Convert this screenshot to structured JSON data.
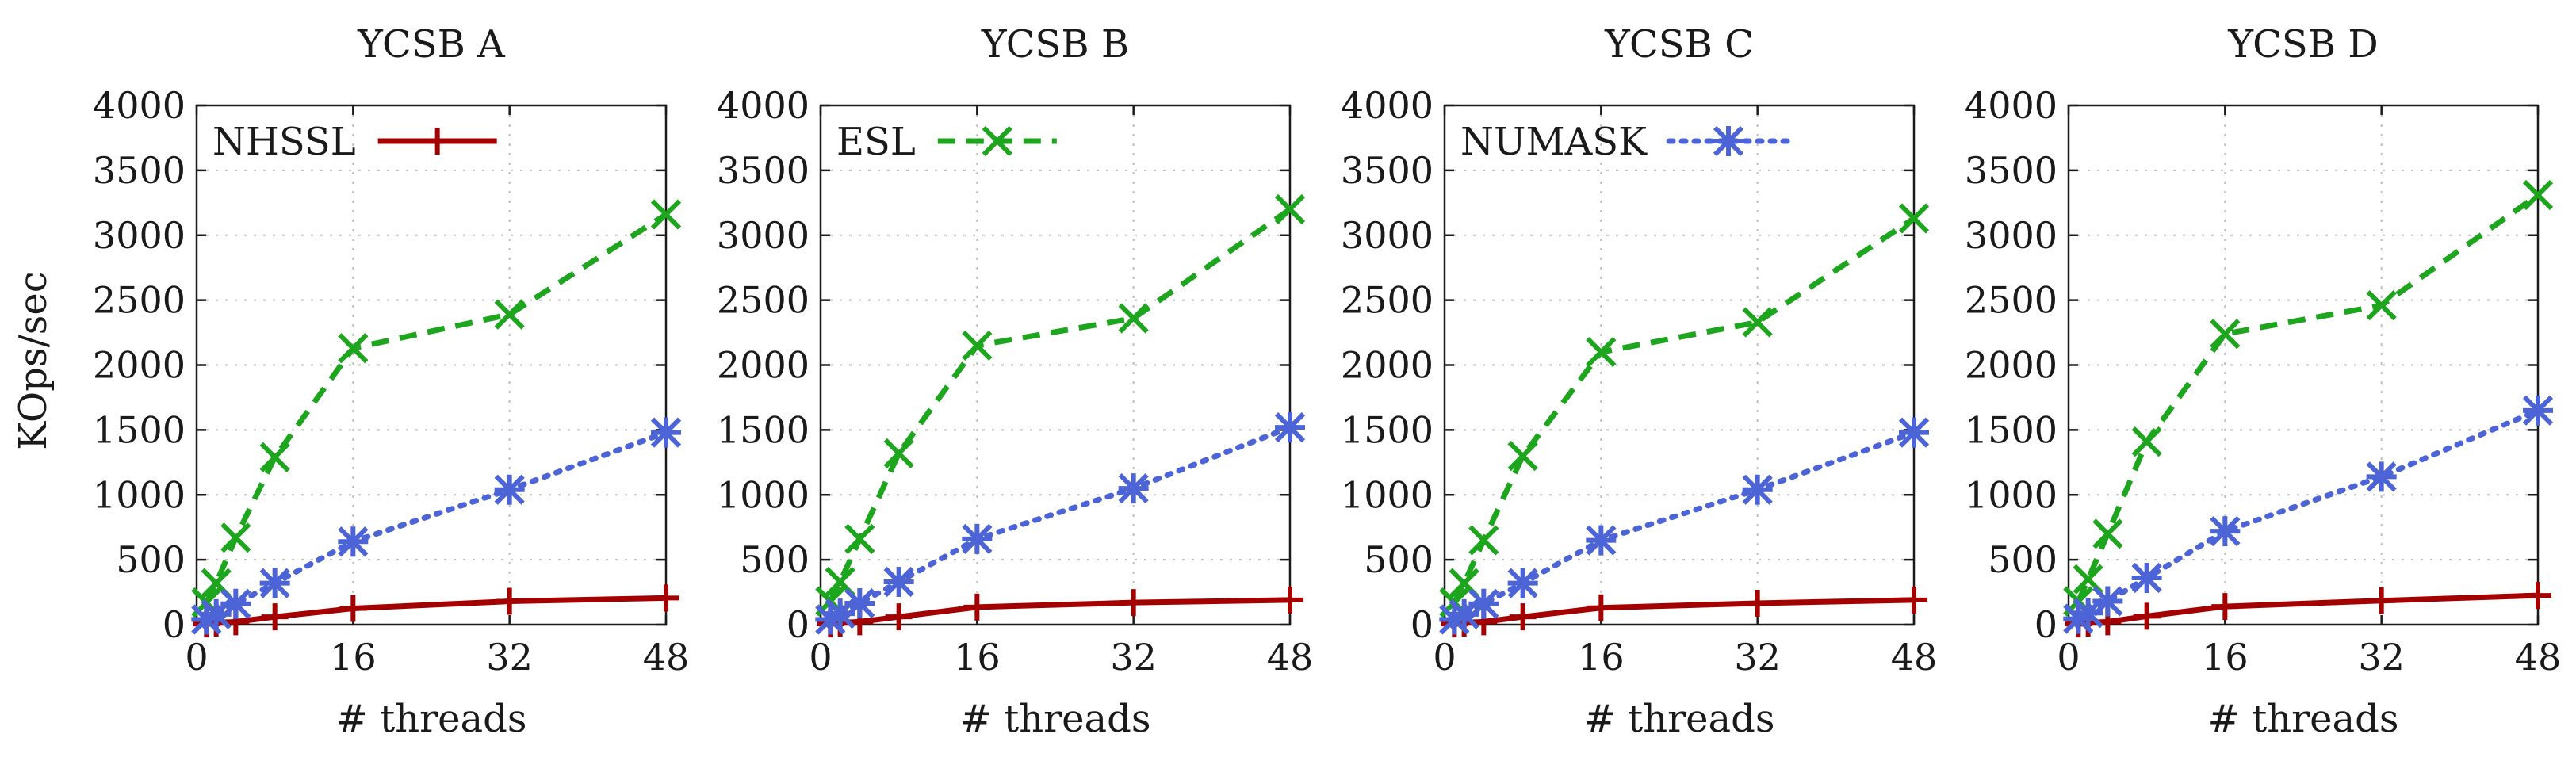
{
  "ylabel": "KOps/sec",
  "chart_data": [
    {
      "type": "line",
      "title": "YCSB A",
      "xlabel": "# threads",
      "x": [
        1,
        2,
        4,
        8,
        16,
        32,
        48
      ],
      "xlim": [
        0,
        48
      ],
      "ylim": [
        0,
        4000
      ],
      "xticks": [
        0,
        16,
        32,
        48
      ],
      "yticks": [
        0,
        500,
        1000,
        1500,
        2000,
        2500,
        3000,
        3500,
        4000
      ],
      "grid": true,
      "legend": {
        "position": "top-left",
        "entry": "NHSSL"
      },
      "series": [
        {
          "name": "NHSSL",
          "color": "#a50000",
          "marker": "plus",
          "dash": "solid",
          "values": [
            5,
            12,
            22,
            60,
            125,
            180,
            205
          ]
        },
        {
          "name": "ESL",
          "color": "#1ea51e",
          "marker": "x",
          "dash": "dashed",
          "values": [
            170,
            320,
            670,
            1290,
            2130,
            2390,
            3160
          ]
        },
        {
          "name": "NUMASK",
          "color": "#4d64d6",
          "marker": "asterisk",
          "dash": "dotted",
          "values": [
            40,
            80,
            160,
            320,
            640,
            1040,
            1480
          ]
        }
      ]
    },
    {
      "type": "line",
      "title": "YCSB B",
      "xlabel": "# threads",
      "x": [
        1,
        2,
        4,
        8,
        16,
        32,
        48
      ],
      "xlim": [
        0,
        48
      ],
      "ylim": [
        0,
        4000
      ],
      "xticks": [
        0,
        16,
        32,
        48
      ],
      "yticks": [
        0,
        500,
        1000,
        1500,
        2000,
        2500,
        3000,
        3500,
        4000
      ],
      "grid": true,
      "legend": {
        "position": "top-left",
        "entry": "ESL"
      },
      "series": [
        {
          "name": "NHSSL",
          "color": "#a50000",
          "marker": "plus",
          "dash": "solid",
          "values": [
            5,
            12,
            22,
            60,
            135,
            170,
            190
          ]
        },
        {
          "name": "ESL",
          "color": "#1ea51e",
          "marker": "x",
          "dash": "dashed",
          "values": [
            180,
            330,
            660,
            1320,
            2150,
            2360,
            3200
          ]
        },
        {
          "name": "NUMASK",
          "color": "#4d64d6",
          "marker": "asterisk",
          "dash": "dotted",
          "values": [
            40,
            85,
            165,
            330,
            660,
            1050,
            1520
          ]
        }
      ]
    },
    {
      "type": "line",
      "title": "YCSB C",
      "xlabel": "# threads",
      "x": [
        1,
        2,
        4,
        8,
        16,
        32,
        48
      ],
      "xlim": [
        0,
        48
      ],
      "ylim": [
        0,
        4000
      ],
      "xticks": [
        0,
        16,
        32,
        48
      ],
      "yticks": [
        0,
        500,
        1000,
        1500,
        2000,
        2500,
        3000,
        3500,
        4000
      ],
      "grid": true,
      "legend": {
        "position": "top-left",
        "entry": "NUMASK"
      },
      "series": [
        {
          "name": "NHSSL",
          "color": "#a50000",
          "marker": "plus",
          "dash": "solid",
          "values": [
            5,
            12,
            22,
            60,
            130,
            165,
            190
          ]
        },
        {
          "name": "ESL",
          "color": "#1ea51e",
          "marker": "x",
          "dash": "dashed",
          "values": [
            170,
            320,
            650,
            1300,
            2100,
            2330,
            3130
          ]
        },
        {
          "name": "NUMASK",
          "color": "#4d64d6",
          "marker": "asterisk",
          "dash": "dotted",
          "values": [
            40,
            80,
            160,
            320,
            650,
            1040,
            1480
          ]
        }
      ]
    },
    {
      "type": "line",
      "title": "YCSB D",
      "xlabel": "# threads",
      "x": [
        1,
        2,
        4,
        8,
        16,
        32,
        48
      ],
      "xlim": [
        0,
        48
      ],
      "ylim": [
        0,
        4000
      ],
      "xticks": [
        0,
        16,
        32,
        48
      ],
      "yticks": [
        0,
        500,
        1000,
        1500,
        2000,
        2500,
        3000,
        3500,
        4000
      ],
      "grid": true,
      "legend": {
        "position": "top-left",
        "entry": ""
      },
      "series": [
        {
          "name": "NHSSL",
          "color": "#a50000",
          "marker": "plus",
          "dash": "solid",
          "values": [
            5,
            12,
            22,
            65,
            140,
            185,
            225
          ]
        },
        {
          "name": "ESL",
          "color": "#1ea51e",
          "marker": "x",
          "dash": "dashed",
          "values": [
            180,
            350,
            700,
            1410,
            2240,
            2460,
            3310
          ]
        },
        {
          "name": "NUMASK",
          "color": "#4d64d6",
          "marker": "asterisk",
          "dash": "dotted",
          "values": [
            45,
            90,
            180,
            360,
            720,
            1140,
            1650
          ]
        }
      ]
    }
  ]
}
